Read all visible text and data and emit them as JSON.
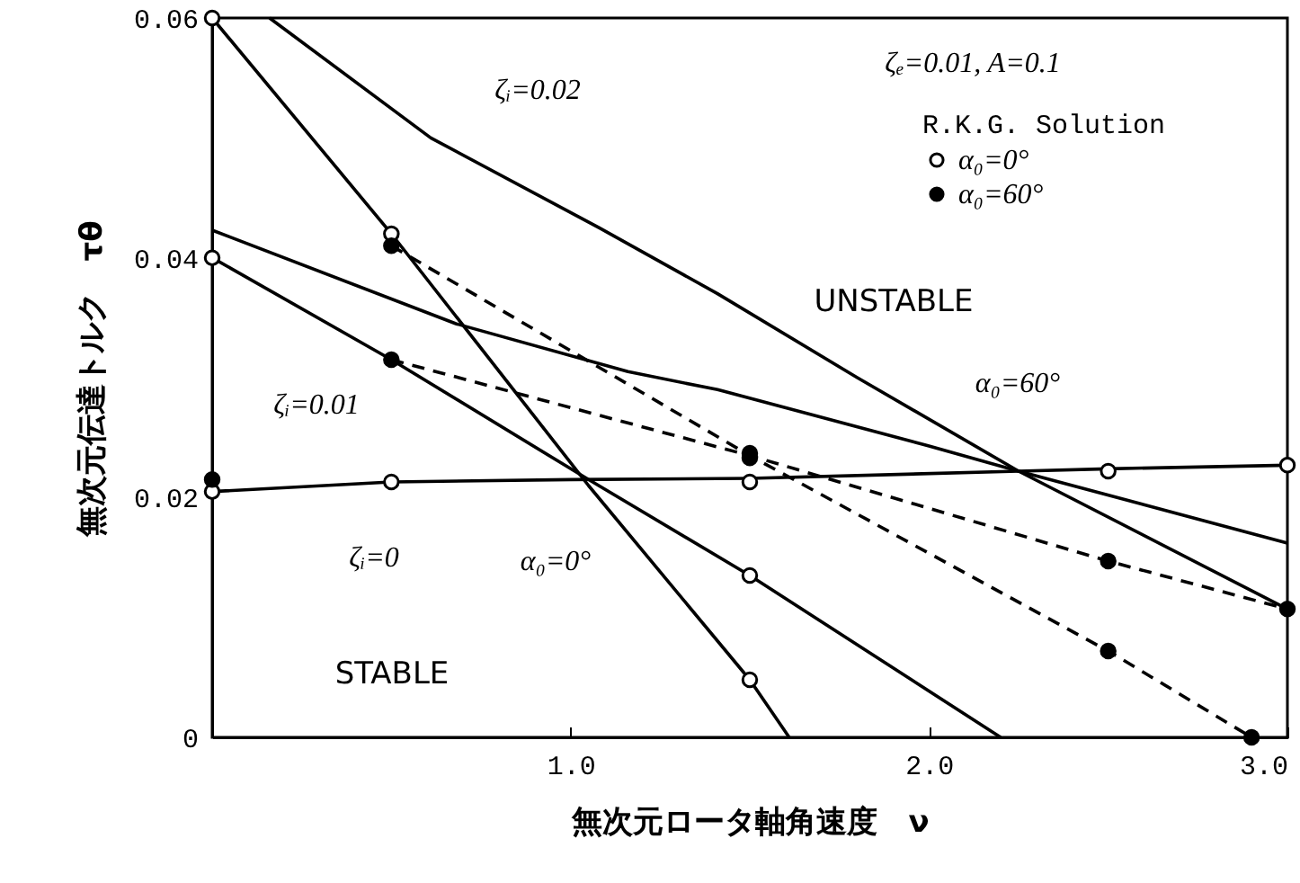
{
  "chart_data": {
    "type": "line",
    "xlabel": "無次元ロータ軸角速度　ν",
    "ylabel": "無次元伝達トルク　τθ",
    "legend_title": "R.K.G. Solution",
    "xlim": [
      0,
      3.0
    ],
    "ylim": [
      0,
      0.06
    ],
    "xticks": [
      {
        "value": 0,
        "label": null
      },
      {
        "value": 1,
        "label": "1.0"
      },
      {
        "value": 2,
        "label": "2.0"
      },
      {
        "value": 3,
        "label": "3.0"
      }
    ],
    "yticks": [
      {
        "value": 0,
        "label": "0"
      },
      0.02,
      0.04,
      0.06
    ],
    "grid": false,
    "legend": "top right",
    "series": [
      {
        "type": "line",
        "color": "#000000",
        "line_style": "solid",
        "marker": "none",
        "x": [
          0,
          0.5,
          1.05,
          1.5,
          1.61
        ],
        "values": [
          0.06,
          0.042,
          0.021,
          0.0048,
          0
        ]
      },
      {
        "type": "line",
        "color": "#000000",
        "line_style": "solid",
        "marker": "none",
        "x": [
          0,
          0.5,
          1.05,
          1.5,
          2.2
        ],
        "values": [
          0.04,
          0.0315,
          0.0215,
          0.0135,
          0
        ]
      },
      {
        "type": "line",
        "color": "#000000",
        "line_style": "solid",
        "marker": "none",
        "x": [
          0.16,
          0.61,
          1.08,
          1.41,
          1.8,
          2.25,
          3.0
        ],
        "values": [
          0.06,
          0.05,
          0.0425,
          0.037,
          0.03,
          0.0222,
          0.0162
        ]
      },
      {
        "type": "line",
        "color": "#000000",
        "line_style": "solid",
        "marker": "none",
        "x": [
          0,
          0.68,
          1.16,
          1.41,
          2.0,
          2.25,
          3.0
        ],
        "values": [
          0.0423,
          0.0345,
          0.0305,
          0.029,
          0.0243,
          0.0222,
          0.0107
        ]
      },
      {
        "type": "line",
        "color": "#000000",
        "line_style": "solid",
        "marker": "none",
        "x": [
          0,
          0.5,
          1.0,
          1.5,
          2.25,
          2.5,
          3.0
        ],
        "values": [
          0.0205,
          0.0213,
          0.0215,
          0.0216,
          0.0222,
          0.0224,
          0.0227
        ]
      },
      {
        "type": "line",
        "color": "#000000",
        "line_style": "dashed",
        "marker": "none",
        "x": [
          0.5,
          1.5,
          2.5,
          2.9
        ],
        "values": [
          0.041,
          0.0235,
          0.0072,
          0
        ]
      },
      {
        "type": "line",
        "color": "#000000",
        "line_style": "dashed",
        "marker": "none",
        "x": [
          0.5,
          1.5,
          2.5,
          3.0
        ],
        "values": [
          0.0315,
          0.0235,
          0.0147,
          0.0107
        ]
      },
      {
        "type": "scatter",
        "name": "α₀=0°",
        "color": "#ffffff",
        "marker": "circle",
        "x": [
          0,
          0,
          0,
          0.5,
          0.5,
          1.5,
          1.5,
          1.5,
          2.5,
          3.0
        ],
        "values": [
          0.06,
          0.04,
          0.0205,
          0.042,
          0.0213,
          0.0213,
          0.0135,
          0.0048,
          0.0222,
          0.0227
        ]
      },
      {
        "type": "scatter",
        "name": "α₀=60°",
        "color": "#000000",
        "marker": "circle",
        "x": [
          0,
          0.5,
          0.5,
          1.5,
          1.5,
          2.5,
          2.5,
          2.9,
          3.0
        ],
        "values": [
          0.0215,
          0.041,
          0.0315,
          0.0237,
          0.0233,
          0.0147,
          0.0072,
          0,
          0.0107
        ]
      }
    ],
    "annotations": [
      "ζₑ=0.01, A=0.1",
      "ζᵢ=0.02",
      "ζᵢ=0.01",
      "ζᵢ=0",
      "α₀=0°",
      "α₀=60°",
      "UNSTABLE",
      "STABLE"
    ]
  }
}
